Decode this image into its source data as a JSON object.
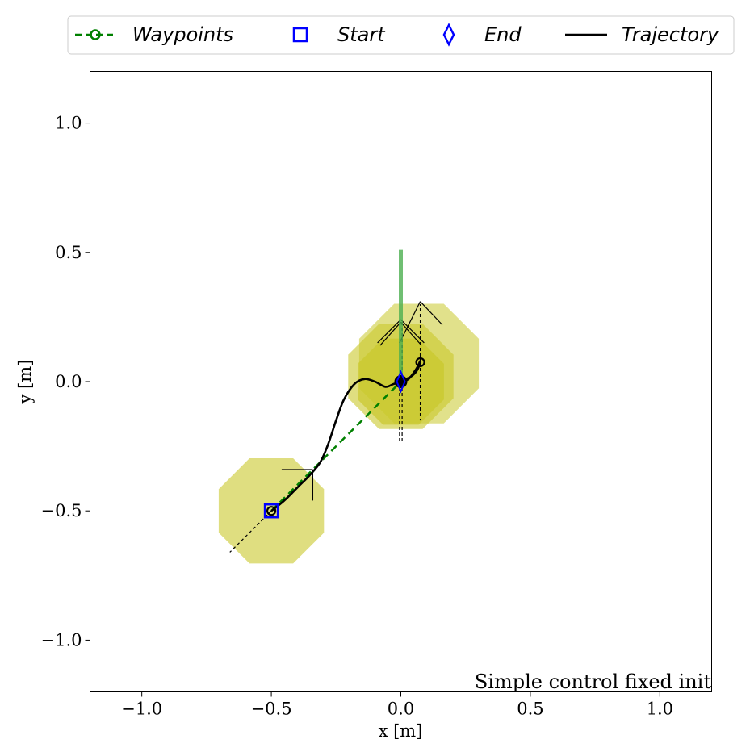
{
  "chart_data": {
    "type": "line",
    "title": "",
    "xlabel": "x [m]",
    "ylabel": "y [m]",
    "xlim": [
      -1.2,
      1.2
    ],
    "ylim": [
      -1.2,
      1.2
    ],
    "xticks": [
      -1.0,
      -0.5,
      0.0,
      0.5,
      1.0
    ],
    "yticks": [
      -1.0,
      -0.5,
      0.0,
      0.5,
      1.0
    ],
    "xtick_labels": [
      "−1.0",
      "−0.5",
      "0.0",
      "0.5",
      "1.0"
    ],
    "ytick_labels": [
      "−1.0",
      "−0.5",
      "0.0",
      "0.5",
      "1.0"
    ],
    "grid": false,
    "legend": {
      "placement": "top-center outside",
      "entries": [
        {
          "label": "Waypoints",
          "style": "dashed-circle",
          "color": "#008000"
        },
        {
          "label": "Start",
          "style": "square",
          "color": "#0000ff"
        },
        {
          "label": "End",
          "style": "diamond",
          "color": "#0000ff"
        },
        {
          "label": "Trajectory",
          "style": "solid",
          "color": "#000000"
        }
      ]
    },
    "annotation": "Simple control fixed init",
    "series": [
      {
        "name": "Waypoints",
        "points": [
          [
            -0.5,
            -0.5
          ],
          [
            0.0,
            0.0
          ]
        ]
      },
      {
        "name": "Trajectory",
        "points": [
          [
            -0.5,
            -0.5
          ],
          [
            -0.45,
            -0.46
          ],
          [
            -0.4,
            -0.41
          ],
          [
            -0.35,
            -0.36
          ],
          [
            -0.31,
            -0.31
          ],
          [
            -0.28,
            -0.24
          ],
          [
            -0.25,
            -0.15
          ],
          [
            -0.22,
            -0.07
          ],
          [
            -0.18,
            -0.01
          ],
          [
            -0.14,
            0.01
          ],
          [
            -0.1,
            0.0
          ],
          [
            -0.06,
            -0.02
          ],
          [
            -0.03,
            -0.01
          ],
          [
            0.0,
            0.0
          ],
          [
            0.03,
            0.01
          ],
          [
            0.06,
            0.05
          ],
          [
            0.075,
            0.08
          ],
          [
            0.07,
            0.06
          ],
          [
            0.06,
            0.04
          ],
          [
            0.04,
            0.02
          ],
          [
            0.0,
            0.0
          ]
        ]
      },
      {
        "name": "Start",
        "points": [
          [
            -0.5,
            -0.5
          ]
        ]
      },
      {
        "name": "End",
        "points": [
          [
            0.0,
            0.0
          ]
        ]
      }
    ],
    "colors": {
      "waypoints": "#008000",
      "start_end": "#0000ff",
      "trajectory": "#000000",
      "octagon_fill": "#c9c82c",
      "octagon_fill_dark": "#b8b800",
      "arrow_green": "#4caf50"
    },
    "vehicle_octagons": [
      {
        "center": [
          -0.5,
          -0.5
        ],
        "radius": 0.22,
        "opacity": 0.6
      },
      {
        "center": [
          0.0,
          0.0
        ],
        "radius": 0.18,
        "opacity": 0.7
      },
      {
        "center": [
          0.07,
          0.07
        ],
        "radius": 0.25,
        "opacity": 0.55
      },
      {
        "center": [
          0.0,
          0.02
        ],
        "radius": 0.22,
        "opacity": 0.6
      }
    ],
    "markers_ring": [
      [
        0.075,
        0.075
      ],
      [
        -0.5,
        -0.5
      ]
    ],
    "velocity_arrow": {
      "from": [
        0.0,
        0.0
      ],
      "to": [
        0.0,
        0.51
      ]
    }
  }
}
